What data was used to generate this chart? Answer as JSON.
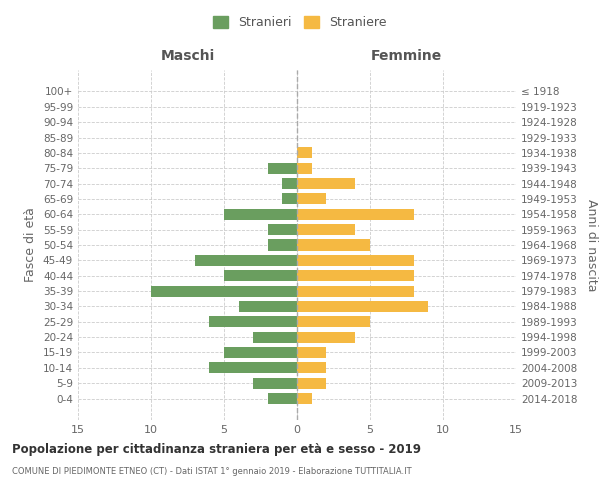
{
  "age_groups": [
    "100+",
    "95-99",
    "90-94",
    "85-89",
    "80-84",
    "75-79",
    "70-74",
    "65-69",
    "60-64",
    "55-59",
    "50-54",
    "45-49",
    "40-44",
    "35-39",
    "30-34",
    "25-29",
    "20-24",
    "15-19",
    "10-14",
    "5-9",
    "0-4"
  ],
  "birth_years": [
    "≤ 1918",
    "1919-1923",
    "1924-1928",
    "1929-1933",
    "1934-1938",
    "1939-1943",
    "1944-1948",
    "1949-1953",
    "1954-1958",
    "1959-1963",
    "1964-1968",
    "1969-1973",
    "1974-1978",
    "1979-1983",
    "1984-1988",
    "1989-1993",
    "1994-1998",
    "1999-2003",
    "2004-2008",
    "2009-2013",
    "2014-2018"
  ],
  "males": [
    0,
    0,
    0,
    0,
    0,
    2,
    1,
    1,
    5,
    2,
    2,
    7,
    5,
    10,
    4,
    6,
    3,
    5,
    6,
    3,
    2
  ],
  "females": [
    0,
    0,
    0,
    0,
    1,
    1,
    4,
    2,
    8,
    4,
    5,
    8,
    8,
    8,
    9,
    5,
    4,
    2,
    2,
    2,
    1
  ],
  "male_color": "#6a9e5f",
  "female_color": "#f5b942",
  "background_color": "#ffffff",
  "grid_color": "#cccccc",
  "title": "Popolazione per cittadinanza straniera per età e sesso - 2019",
  "subtitle": "COMUNE DI PIEDIMONTE ETNEO (CT) - Dati ISTAT 1° gennaio 2019 - Elaborazione TUTTITALIA.IT",
  "ylabel_left": "Fasce di età",
  "ylabel_right": "Anni di nascita",
  "xlabel_left": "Maschi",
  "xlabel_right": "Femmine",
  "legend_male": "Stranieri",
  "legend_female": "Straniere",
  "xlim": 15
}
